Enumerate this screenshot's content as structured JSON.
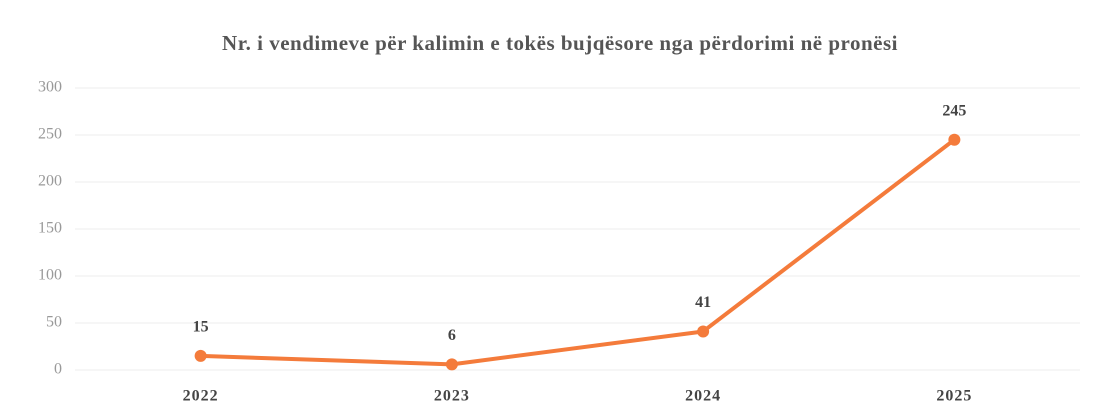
{
  "chart_data": {
    "type": "line",
    "title": "Nr. i vendimeve për kalimin e tokës bujqësore nga përdorimi në pronësi",
    "categories": [
      "2022",
      "2023",
      "2024",
      "2025"
    ],
    "values": [
      15,
      6,
      41,
      245
    ],
    "color": "#f47b3b",
    "ylim": [
      0,
      300
    ],
    "yticks": [
      0,
      50,
      100,
      150,
      200,
      250,
      300
    ],
    "grid": true
  }
}
